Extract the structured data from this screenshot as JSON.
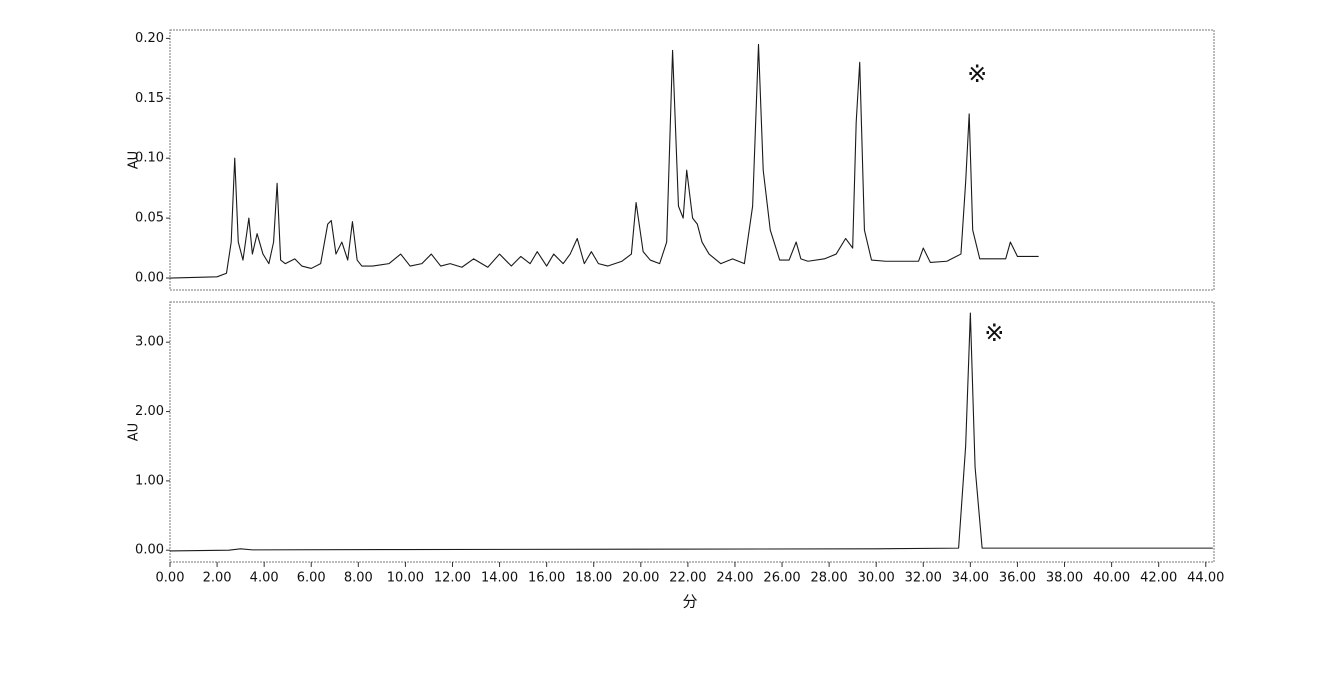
{
  "chart_data": [
    {
      "type": "line",
      "y_label": "AU",
      "annotation": "※",
      "color": "#1a1a1a",
      "xlim": [
        0,
        44.35
      ],
      "ylim": [
        -0.01,
        0.207
      ],
      "yticks": [
        {
          "value": 0,
          "label": "0.00"
        },
        0.05,
        {
          "value": 0.1,
          "label": "0.10"
        },
        0.15,
        {
          "value": 0.2,
          "label": "0.20"
        }
      ],
      "x": [
        0,
        2.0,
        2.4,
        2.6,
        2.75,
        2.9,
        3.1,
        3.35,
        3.5,
        3.7,
        3.95,
        4.2,
        4.4,
        4.55,
        4.7,
        4.9,
        5.3,
        5.6,
        6.0,
        6.4,
        6.7,
        6.85,
        7.05,
        7.3,
        7.55,
        7.75,
        7.95,
        8.15,
        8.6,
        9.3,
        9.8,
        10.2,
        10.7,
        11.1,
        11.5,
        11.9,
        12.4,
        12.9,
        13.5,
        14.0,
        14.5,
        14.9,
        15.3,
        15.6,
        16.0,
        16.3,
        16.7,
        17.0,
        17.3,
        17.6,
        17.9,
        18.2,
        18.6,
        19.2,
        19.6,
        19.8,
        20.1,
        20.4,
        20.8,
        21.1,
        21.35,
        21.6,
        21.8,
        21.95,
        22.2,
        22.4,
        22.6,
        22.9,
        23.4,
        23.9,
        24.4,
        24.75,
        25.0,
        25.2,
        25.5,
        25.9,
        26.3,
        26.6,
        26.8,
        27.1,
        27.8,
        28.3,
        28.7,
        29.0,
        29.15,
        29.3,
        29.5,
        29.8,
        30.4,
        31.2,
        31.8,
        32.0,
        32.3,
        33.0,
        33.6,
        33.8,
        33.95,
        34.1,
        34.4,
        35.0,
        35.5,
        35.7,
        36.0,
        36.5,
        36.9
      ],
      "values": [
        0,
        0.001,
        0.004,
        0.03,
        0.1,
        0.03,
        0.015,
        0.05,
        0.02,
        0.037,
        0.02,
        0.012,
        0.03,
        0.079,
        0.015,
        0.012,
        0.016,
        0.01,
        0.008,
        0.012,
        0.045,
        0.048,
        0.02,
        0.03,
        0.015,
        0.047,
        0.015,
        0.01,
        0.01,
        0.012,
        0.02,
        0.01,
        0.012,
        0.02,
        0.01,
        0.012,
        0.009,
        0.016,
        0.009,
        0.02,
        0.01,
        0.018,
        0.012,
        0.022,
        0.01,
        0.02,
        0.012,
        0.02,
        0.033,
        0.012,
        0.022,
        0.012,
        0.01,
        0.014,
        0.02,
        0.063,
        0.022,
        0.015,
        0.012,
        0.03,
        0.19,
        0.06,
        0.05,
        0.09,
        0.05,
        0.045,
        0.03,
        0.02,
        0.012,
        0.016,
        0.012,
        0.06,
        0.195,
        0.09,
        0.04,
        0.015,
        0.015,
        0.03,
        0.016,
        0.014,
        0.016,
        0.02,
        0.033,
        0.025,
        0.13,
        0.18,
        0.04,
        0.015,
        0.014,
        0.014,
        0.014,
        0.025,
        0.013,
        0.014,
        0.02,
        0.08,
        0.137,
        0.04,
        0.016,
        0.016,
        0.016,
        0.03,
        0.018,
        0.018,
        0.018
      ]
    },
    {
      "type": "line",
      "y_label": "AU",
      "x_label": "分",
      "annotation": "※",
      "color": "#1a1a1a",
      "xlim": [
        0,
        44.35
      ],
      "ylim": [
        -0.17,
        3.58
      ],
      "yticks": [
        {
          "value": 0,
          "label": "0.00"
        },
        {
          "value": 1,
          "label": "1.00"
        },
        {
          "value": 2,
          "label": "2.00"
        },
        {
          "value": 3,
          "label": "3.00"
        }
      ],
      "xticks": [
        {
          "value": 0,
          "label": "0.00"
        },
        {
          "value": 2,
          "label": "2.00"
        },
        {
          "value": 4,
          "label": "4.00"
        },
        {
          "value": 6,
          "label": "6.00"
        },
        {
          "value": 8,
          "label": "8.00"
        },
        {
          "value": 10,
          "label": "10.00"
        },
        {
          "value": 12,
          "label": "12.00"
        },
        {
          "value": 14,
          "label": "14.00"
        },
        {
          "value": 16,
          "label": "16.00"
        },
        {
          "value": 18,
          "label": "18.00"
        },
        {
          "value": 20,
          "label": "20.00"
        },
        {
          "value": 22,
          "label": "22.00"
        },
        {
          "value": 24,
          "label": "24.00"
        },
        {
          "value": 26,
          "label": "26.00"
        },
        {
          "value": 28,
          "label": "28.00"
        },
        {
          "value": 30,
          "label": "30.00"
        },
        {
          "value": 32,
          "label": "32.00"
        },
        {
          "value": 34,
          "label": "34.00"
        },
        {
          "value": 36,
          "label": "36.00"
        },
        {
          "value": 38,
          "label": "38.00"
        },
        {
          "value": 40,
          "label": "40.00"
        },
        {
          "value": 42,
          "label": "42.00"
        },
        {
          "value": 44,
          "label": "44.00"
        }
      ],
      "x": [
        0,
        2.5,
        3.0,
        3.5,
        10,
        20,
        30,
        33.5,
        33.8,
        34.0,
        34.2,
        34.5,
        36,
        44.3
      ],
      "values": [
        -0.01,
        0,
        0.02,
        0.005,
        0.01,
        0.015,
        0.02,
        0.03,
        1.5,
        3.42,
        1.2,
        0.03,
        0.03,
        0.03
      ]
    }
  ]
}
